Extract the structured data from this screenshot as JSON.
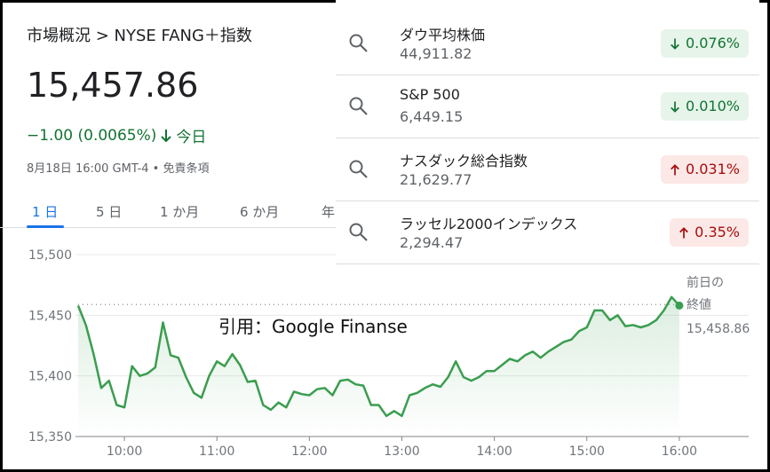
{
  "header": {
    "breadcrumb": "市場概況 > NYSE FANG＋指数",
    "price": "15,457.86",
    "change": "−1.00 (0.0065%)",
    "direction": "down",
    "change_period": "今日",
    "timestamp": "8月18日 16:00 GMT-4 • 免責条項"
  },
  "tabs": [
    "1 日",
    "5 日",
    "1 か月",
    "6 か月",
    "年"
  ],
  "indices": [
    {
      "name": "ダウ平均株価",
      "value": "44,911.82",
      "change": "0.076%",
      "direction": "down"
    },
    {
      "name": "S&P 500",
      "value": "6,449.15",
      "change": "0.010%",
      "direction": "down"
    },
    {
      "name": "ナスダック総合指数",
      "value": "21,629.77",
      "change": "0.031%",
      "direction": "up"
    },
    {
      "name": "ラッセル2000インデックス",
      "value": "2,294.47",
      "change": "0.35%",
      "direction": "up"
    }
  ],
  "chart_data": {
    "type": "line",
    "color": "#3a9d4f",
    "grid": true,
    "annotation": "引用：Google Finanse",
    "previous_close": {
      "label_lines": [
        "前日の",
        "終値"
      ],
      "value": 15458.86,
      "value_label": "15,458.86"
    },
    "x": [
      570,
      575,
      580,
      585,
      590,
      595,
      600,
      605,
      610,
      615,
      620,
      625,
      630,
      635,
      640,
      645,
      650,
      655,
      660,
      665,
      670,
      675,
      680,
      685,
      690,
      695,
      700,
      705,
      710,
      715,
      720,
      725,
      730,
      735,
      740,
      745,
      750,
      755,
      760,
      765,
      770,
      775,
      780,
      785,
      790,
      795,
      800,
      805,
      810,
      815,
      820,
      825,
      830,
      835,
      840,
      845,
      850,
      855,
      860,
      865,
      870,
      875,
      880,
      885,
      890,
      895,
      900,
      905,
      910,
      915,
      920,
      925,
      930,
      935,
      940,
      945,
      950,
      955,
      960
    ],
    "values": [
      15458,
      15442,
      15418,
      15390,
      15396,
      15376,
      15374,
      15408,
      15400,
      15402,
      15407,
      15444,
      15417,
      15415,
      15399,
      15386,
      15382,
      15400,
      15412,
      15408,
      15418,
      15409,
      15395,
      15396,
      15376,
      15372,
      15378,
      15374,
      15387,
      15385,
      15384,
      15389,
      15390,
      15384,
      15396,
      15397,
      15393,
      15392,
      15376,
      15376,
      15367,
      15371,
      15367,
      15384,
      15386,
      15390,
      15393,
      15391,
      15399,
      15412,
      15399,
      15396,
      15399,
      15404,
      15404,
      15409,
      15414,
      15412,
      15417,
      15420,
      15415,
      15420,
      15424,
      15428,
      15430,
      15437,
      15440,
      15454,
      15454,
      15446,
      15450,
      15441,
      15442,
      15440,
      15442,
      15446,
      15454,
      15465,
      15458
    ],
    "xlim": [
      570,
      1005
    ],
    "xticks": [
      {
        "value": 600,
        "label": "10:00"
      },
      {
        "value": 660,
        "label": "11:00"
      },
      {
        "value": 720,
        "label": "12:00"
      },
      {
        "value": 780,
        "label": "13:00"
      },
      {
        "value": 840,
        "label": "14:00"
      },
      {
        "value": 900,
        "label": "15:00"
      },
      {
        "value": 960,
        "label": "16:00"
      }
    ],
    "ylim": [
      15350,
      15500
    ],
    "yticks": [
      {
        "value": 15350,
        "label": "15,350"
      },
      {
        "value": 15400,
        "label": "15,400"
      },
      {
        "value": 15450,
        "label": "15,450"
      },
      {
        "value": 15500,
        "label": "15,500"
      }
    ]
  }
}
